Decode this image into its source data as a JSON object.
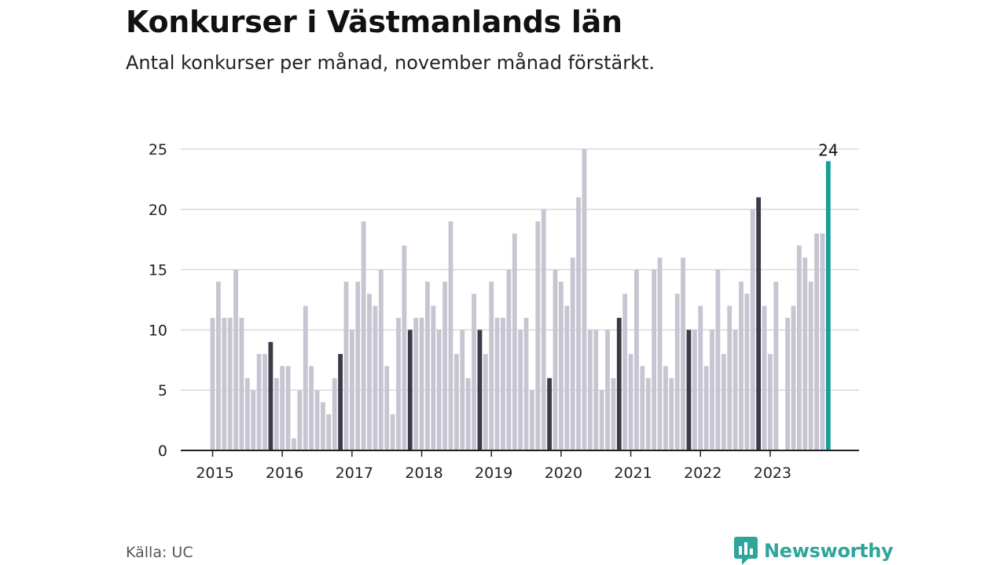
{
  "title": "Konkurser i Västmanlands län",
  "subtitle": "Antal konkurser per månad, november månad förstärkt.",
  "source": "Källa: UC",
  "brand": {
    "name": "Newsworthy",
    "color": "#2fa59b",
    "icon": "bar-chart-speech-bubble-icon"
  },
  "colors": {
    "bar": "#c6c5d1",
    "november": "#3b3a48",
    "latest": "#14a096",
    "grid": "#d8d8d8",
    "axis": "#222222"
  },
  "chart_data": {
    "type": "bar",
    "title": "Konkurser i Västmanlands län",
    "subtitle": "Antal konkurser per månad, november månad förstärkt.",
    "xlabel": "",
    "ylabel": "",
    "ylim": [
      0,
      25
    ],
    "yticks": [
      "0",
      "5",
      "10",
      "15",
      "20",
      "25"
    ],
    "xticks": [
      "2015",
      "2016",
      "2017",
      "2018",
      "2019",
      "2020",
      "2021",
      "2022",
      "2023"
    ],
    "grid": true,
    "start_month": "2015-01",
    "highlight_month": "november",
    "latest_label": "24",
    "values": [
      11,
      14,
      11,
      11,
      15,
      11,
      6,
      5,
      8,
      8,
      9,
      6,
      7,
      7,
      1,
      5,
      12,
      7,
      5,
      4,
      3,
      6,
      8,
      14,
      10,
      14,
      19,
      13,
      12,
      15,
      7,
      3,
      11,
      17,
      10,
      11,
      11,
      14,
      12,
      10,
      14,
      19,
      8,
      10,
      6,
      13,
      10,
      8,
      14,
      11,
      11,
      15,
      18,
      10,
      11,
      5,
      19,
      20,
      6,
      15,
      14,
      12,
      16,
      21,
      25,
      10,
      10,
      5,
      10,
      6,
      11,
      13,
      8,
      15,
      7,
      6,
      15,
      16,
      7,
      6,
      13,
      16,
      10,
      10,
      12,
      7,
      10,
      15,
      8,
      12,
      10,
      14,
      13,
      20,
      21,
      12,
      8,
      14,
      0,
      11,
      12,
      17,
      16,
      14,
      18,
      18,
      24
    ]
  }
}
